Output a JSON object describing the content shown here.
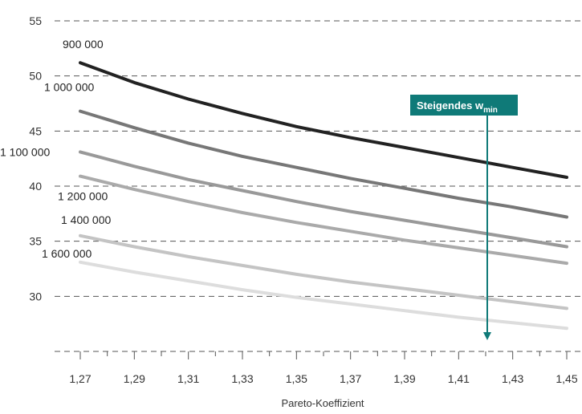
{
  "chart_data": {
    "type": "line",
    "title": "",
    "xlabel": "Pareto-Koeffizient",
    "ylabel": "",
    "x": [
      1.27,
      1.29,
      1.31,
      1.33,
      1.35,
      1.37,
      1.39,
      1.41,
      1.43,
      1.45
    ],
    "x_tick_labels": [
      "1,27",
      "1,29",
      "1,31",
      "1,33",
      "1,35",
      "1,37",
      "1,39",
      "1,41",
      "1,43",
      "1,45"
    ],
    "y_ticks": [
      30,
      35,
      40,
      45,
      50,
      55
    ],
    "y_tick_labels": [
      "30",
      "35",
      "40",
      "45",
      "50",
      "55"
    ],
    "xlim": [
      1.27,
      1.45
    ],
    "ylim": [
      25,
      55
    ],
    "grid": "horizontal dashed",
    "series": [
      {
        "name": "900 000",
        "color": "#222222",
        "values": [
          51.2,
          49.4,
          47.9,
          46.6,
          45.4,
          44.4,
          43.5,
          42.6,
          41.7,
          40.8
        ]
      },
      {
        "name": "1 000 000",
        "color": "#777777",
        "values": [
          46.8,
          45.3,
          43.9,
          42.7,
          41.7,
          40.7,
          39.8,
          38.9,
          38.1,
          37.2
        ]
      },
      {
        "name": "1 100 000",
        "color": "#999999",
        "values": [
          43.1,
          41.8,
          40.6,
          39.6,
          38.6,
          37.7,
          36.9,
          36.1,
          35.3,
          34.5
        ]
      },
      {
        "name": "1 200 000",
        "color": "#aaaaaa",
        "values": [
          40.9,
          39.7,
          38.6,
          37.6,
          36.7,
          35.9,
          35.1,
          34.4,
          33.7,
          33.0
        ]
      },
      {
        "name": "1 400 000",
        "color": "#c4c4c4",
        "values": [
          35.5,
          34.5,
          33.6,
          32.8,
          32.0,
          31.3,
          30.7,
          30.1,
          29.5,
          28.9
        ]
      },
      {
        "name": "1 600 000",
        "color": "#dddddd",
        "values": [
          33.1,
          32.2,
          31.4,
          30.6,
          29.9,
          29.3,
          28.7,
          28.1,
          27.6,
          27.1
        ]
      }
    ],
    "annotation": {
      "text_main": "Steigendes w",
      "text_sub": "min",
      "box_color": "#0f7a78",
      "arrow_color": "#0f7a78"
    }
  }
}
